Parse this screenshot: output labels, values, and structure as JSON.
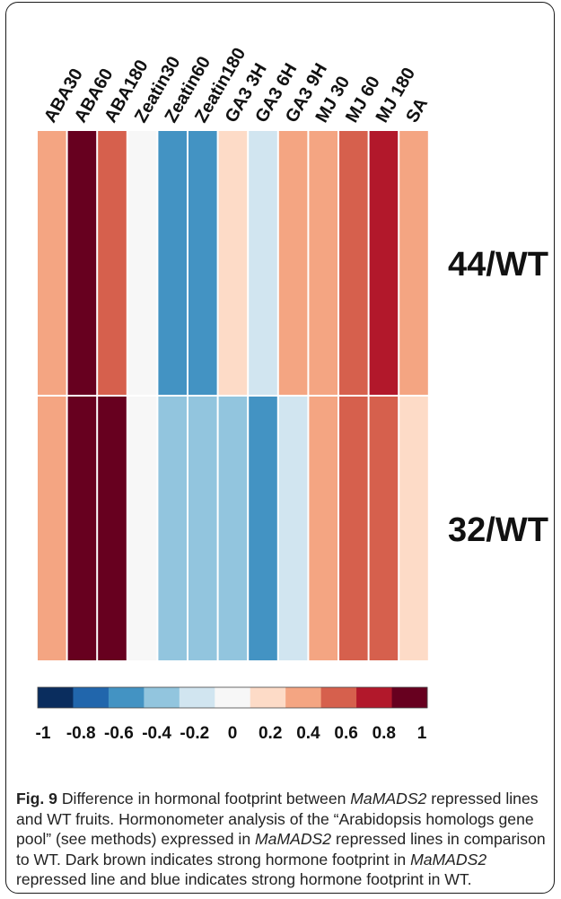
{
  "chart_data": {
    "type": "heatmap",
    "columns": [
      "ABA30",
      "ABA60",
      "ABA180",
      "Zeatin30",
      "Zeatin60",
      "Zeatin180",
      "GA3 3H",
      "GA3 6H",
      "GA3 9H",
      "MJ 30",
      "MJ 60",
      "MJ 180",
      "SA"
    ],
    "rows": [
      "44/WT",
      "32/WT"
    ],
    "values": [
      [
        0.35,
        1.0,
        0.55,
        0.0,
        -0.55,
        -0.7,
        0.15,
        -0.2,
        0.35,
        0.35,
        0.55,
        0.8,
        0.35
      ],
      [
        0.35,
        1.0,
        1.0,
        0.0,
        -0.4,
        -0.4,
        -0.4,
        -0.55,
        -0.2,
        0.35,
        0.55,
        0.55,
        0.15
      ]
    ],
    "colorbar": {
      "range": [
        -1,
        1
      ],
      "colors": [
        "#0a2d5e",
        "#2166ac",
        "#4393c3",
        "#92c5de",
        "#d1e5f0",
        "#f7f7f7",
        "#fddbc7",
        "#f4a582",
        "#d6604d",
        "#b2182b",
        "#67001f"
      ],
      "tick_labels": [
        "-1",
        "-0.8",
        "-0.6",
        "-0.4",
        "-0.2",
        "0",
        "0.2",
        "0.4",
        "0.6",
        "0.8",
        "1"
      ]
    },
    "xlabel": "",
    "ylabel": ""
  },
  "caption": {
    "fig_label": "Fig. 9",
    "text1": " Difference in hormonal footprint between ",
    "gene1": "MaMADS2",
    "text2": " repressed lines and WT fruits. Hormonometer analysis of the “Arabidopsis homologs gene pool” (see methods) expressed in ",
    "gene2": "MaMADS2",
    "text3": " repressed lines in comparison to WT. Dark brown indicates strong hormone footprint in ",
    "gene3": "MaMADS2",
    "text4": " repressed line and blue indicates strong hormone footprint in WT."
  }
}
